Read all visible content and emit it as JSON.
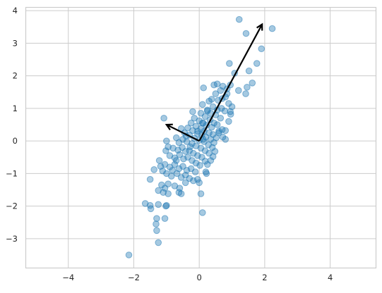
{
  "chart_data": {
    "type": "scatter",
    "title": "",
    "xlabel": "",
    "ylabel": "",
    "xlim": [
      -5.3,
      5.4
    ],
    "ylim": [
      -3.9,
      4.1
    ],
    "grid": true,
    "x_ticks": [
      -4,
      -2,
      0,
      2,
      4
    ],
    "y_ticks": [
      -3,
      -2,
      -1,
      0,
      1,
      2,
      3,
      4
    ],
    "x_tick_labels": [
      "−4",
      "−2",
      "0",
      "2",
      "4"
    ],
    "y_tick_labels": [
      "−3",
      "−2",
      "−1",
      "0",
      "1",
      "2",
      "3",
      "4"
    ],
    "series": [
      {
        "color": "#1f77b4",
        "alpha": 0.4,
        "points": [
          [
            1.22,
            3.73
          ],
          [
            2.23,
            3.45
          ],
          [
            1.43,
            3.3
          ],
          [
            1.9,
            2.83
          ],
          [
            1.76,
            2.38
          ],
          [
            0.92,
            2.38
          ],
          [
            1.52,
            2.15
          ],
          [
            1.08,
            2.08
          ],
          [
            1.62,
            1.78
          ],
          [
            0.55,
            1.75
          ],
          [
            0.72,
            1.68
          ],
          [
            1.46,
            1.65
          ],
          [
            0.13,
            1.63
          ],
          [
            0.45,
            1.72
          ],
          [
            0.95,
            1.72
          ],
          [
            0.85,
            1.6
          ],
          [
            1.2,
            1.55
          ],
          [
            1.42,
            1.45
          ],
          [
            0.65,
            1.55
          ],
          [
            0.5,
            1.45
          ],
          [
            0.38,
            1.28
          ],
          [
            0.7,
            1.3
          ],
          [
            0.85,
            1.45
          ],
          [
            0.3,
            1.22
          ],
          [
            0.58,
            1.25
          ],
          [
            0.8,
            1.35
          ],
          [
            0.9,
            1.15
          ],
          [
            1.0,
            1.05
          ],
          [
            0.95,
            0.9
          ],
          [
            0.96,
            0.82
          ],
          [
            0.1,
            1.12
          ],
          [
            0.42,
            1.05
          ],
          [
            0.68,
            1.0
          ],
          [
            0.78,
            0.92
          ],
          [
            0.55,
            0.95
          ],
          [
            0.25,
            0.92
          ],
          [
            0.35,
            0.85
          ],
          [
            0.5,
            0.8
          ],
          [
            0.65,
            0.7
          ],
          [
            0.9,
            0.6
          ],
          [
            -0.2,
            0.9
          ],
          [
            0.05,
            0.85
          ],
          [
            0.18,
            0.75
          ],
          [
            0.33,
            0.65
          ],
          [
            0.45,
            0.55
          ],
          [
            0.7,
            0.35
          ],
          [
            0.8,
            0.32
          ],
          [
            0.6,
            0.3
          ],
          [
            0.72,
            0.12
          ],
          [
            0.8,
            0.05
          ],
          [
            -1.08,
            0.7
          ],
          [
            -0.15,
            0.7
          ],
          [
            0.0,
            0.62
          ],
          [
            0.12,
            0.55
          ],
          [
            0.22,
            0.48
          ],
          [
            0.38,
            0.42
          ],
          [
            -0.25,
            0.55
          ],
          [
            -0.1,
            0.45
          ],
          [
            0.05,
            0.38
          ],
          [
            0.15,
            0.3
          ],
          [
            0.3,
            0.25
          ],
          [
            0.42,
            0.2
          ],
          [
            0.52,
            0.1
          ],
          [
            -0.35,
            0.4
          ],
          [
            -0.2,
            0.32
          ],
          [
            -0.05,
            0.22
          ],
          [
            0.08,
            0.18
          ],
          [
            0.2,
            0.12
          ],
          [
            0.35,
            0.05
          ],
          [
            0.45,
            -0.05
          ],
          [
            -0.55,
            0.38
          ],
          [
            -0.45,
            0.25
          ],
          [
            -0.3,
            0.18
          ],
          [
            -0.15,
            0.08
          ],
          [
            0.0,
            0.02
          ],
          [
            0.15,
            -0.02
          ],
          [
            0.28,
            -0.12
          ],
          [
            0.4,
            -0.2
          ],
          [
            0.48,
            -0.32
          ],
          [
            -1.0,
            0.0
          ],
          [
            -0.95,
            -0.18
          ],
          [
            -0.7,
            0.1
          ],
          [
            -0.62,
            -0.05
          ],
          [
            -0.5,
            0.05
          ],
          [
            -0.38,
            -0.02
          ],
          [
            -0.22,
            -0.08
          ],
          [
            -0.1,
            -0.15
          ],
          [
            0.05,
            -0.22
          ],
          [
            0.18,
            -0.3
          ],
          [
            0.3,
            -0.38
          ],
          [
            0.42,
            -0.48
          ],
          [
            0.35,
            -0.6
          ],
          [
            0.25,
            -0.72
          ],
          [
            -1.02,
            -0.3
          ],
          [
            -0.8,
            -0.22
          ],
          [
            -0.65,
            -0.28
          ],
          [
            -0.52,
            -0.2
          ],
          [
            -0.42,
            -0.32
          ],
          [
            -0.3,
            -0.3
          ],
          [
            -0.18,
            -0.38
          ],
          [
            -0.05,
            -0.45
          ],
          [
            0.08,
            -0.5
          ],
          [
            0.18,
            -0.62
          ],
          [
            -0.9,
            -0.45
          ],
          [
            -0.75,
            -0.52
          ],
          [
            -0.6,
            -0.42
          ],
          [
            -0.48,
            -0.55
          ],
          [
            -0.35,
            -0.5
          ],
          [
            -0.22,
            -0.6
          ],
          [
            -0.1,
            -0.68
          ],
          [
            0.02,
            -0.75
          ],
          [
            -1.22,
            -0.6
          ],
          [
            -1.05,
            -0.72
          ],
          [
            -0.9,
            -0.8
          ],
          [
            -0.75,
            -0.72
          ],
          [
            -0.62,
            -0.85
          ],
          [
            -0.5,
            -0.78
          ],
          [
            -0.38,
            -0.9
          ],
          [
            -0.25,
            -0.85
          ],
          [
            -0.12,
            -0.95
          ],
          [
            0.2,
            -0.95
          ],
          [
            0.22,
            -1.0
          ],
          [
            -1.18,
            -0.78
          ],
          [
            -1.12,
            -0.92
          ],
          [
            -1.0,
            -1.0
          ],
          [
            -0.85,
            -1.08
          ],
          [
            -0.68,
            -1.0
          ],
          [
            -0.55,
            -1.12
          ],
          [
            -0.42,
            -1.05
          ],
          [
            -0.3,
            -1.15
          ],
          [
            -0.18,
            -1.22
          ],
          [
            -0.05,
            -1.18
          ],
          [
            0.0,
            -1.28
          ],
          [
            -1.38,
            -0.88
          ],
          [
            -1.15,
            -1.35
          ],
          [
            -0.95,
            -1.32
          ],
          [
            -0.75,
            -1.38
          ],
          [
            -0.6,
            -1.45
          ],
          [
            -0.42,
            -1.28
          ],
          [
            -0.55,
            -1.62
          ],
          [
            -0.62,
            -1.58
          ],
          [
            0.05,
            -1.62
          ],
          [
            -1.5,
            -1.18
          ],
          [
            -1.25,
            -1.52
          ],
          [
            -1.05,
            -1.45
          ],
          [
            -0.95,
            -1.62
          ],
          [
            -1.1,
            -1.58
          ],
          [
            -1.25,
            -1.95
          ],
          [
            -1.5,
            -1.98
          ],
          [
            -1.48,
            -2.08
          ],
          [
            -1.65,
            -1.92
          ],
          [
            -1.0,
            -1.98
          ],
          [
            -1.02,
            -2.0
          ],
          [
            -1.3,
            -2.38
          ],
          [
            -1.05,
            -2.38
          ],
          [
            0.1,
            -2.2
          ],
          [
            -1.32,
            -2.55
          ],
          [
            -1.3,
            -2.75
          ],
          [
            -1.25,
            -3.12
          ],
          [
            -2.15,
            -3.5
          ],
          [
            -0.05,
            0.3
          ],
          [
            0.1,
            0.55
          ],
          [
            -0.4,
            0.15
          ],
          [
            0.6,
            0.25
          ],
          [
            0.25,
            0.95
          ],
          [
            -0.7,
            -0.6
          ],
          [
            -0.28,
            -0.18
          ],
          [
            0.12,
            0.05
          ],
          [
            0.55,
            0.5
          ],
          [
            -0.82,
            -0.9
          ]
        ]
      }
    ],
    "arrows": [
      {
        "start": [
          0,
          0
        ],
        "end": [
          1.92,
          3.58
        ]
      },
      {
        "start": [
          0,
          0
        ],
        "end": [
          -1.0,
          0.5
        ]
      }
    ],
    "colors": {
      "points": "#1f77b4",
      "arrows": "#000000",
      "grid": "#cccccc",
      "background": "#ffffff",
      "tick_text": "#262626"
    }
  }
}
